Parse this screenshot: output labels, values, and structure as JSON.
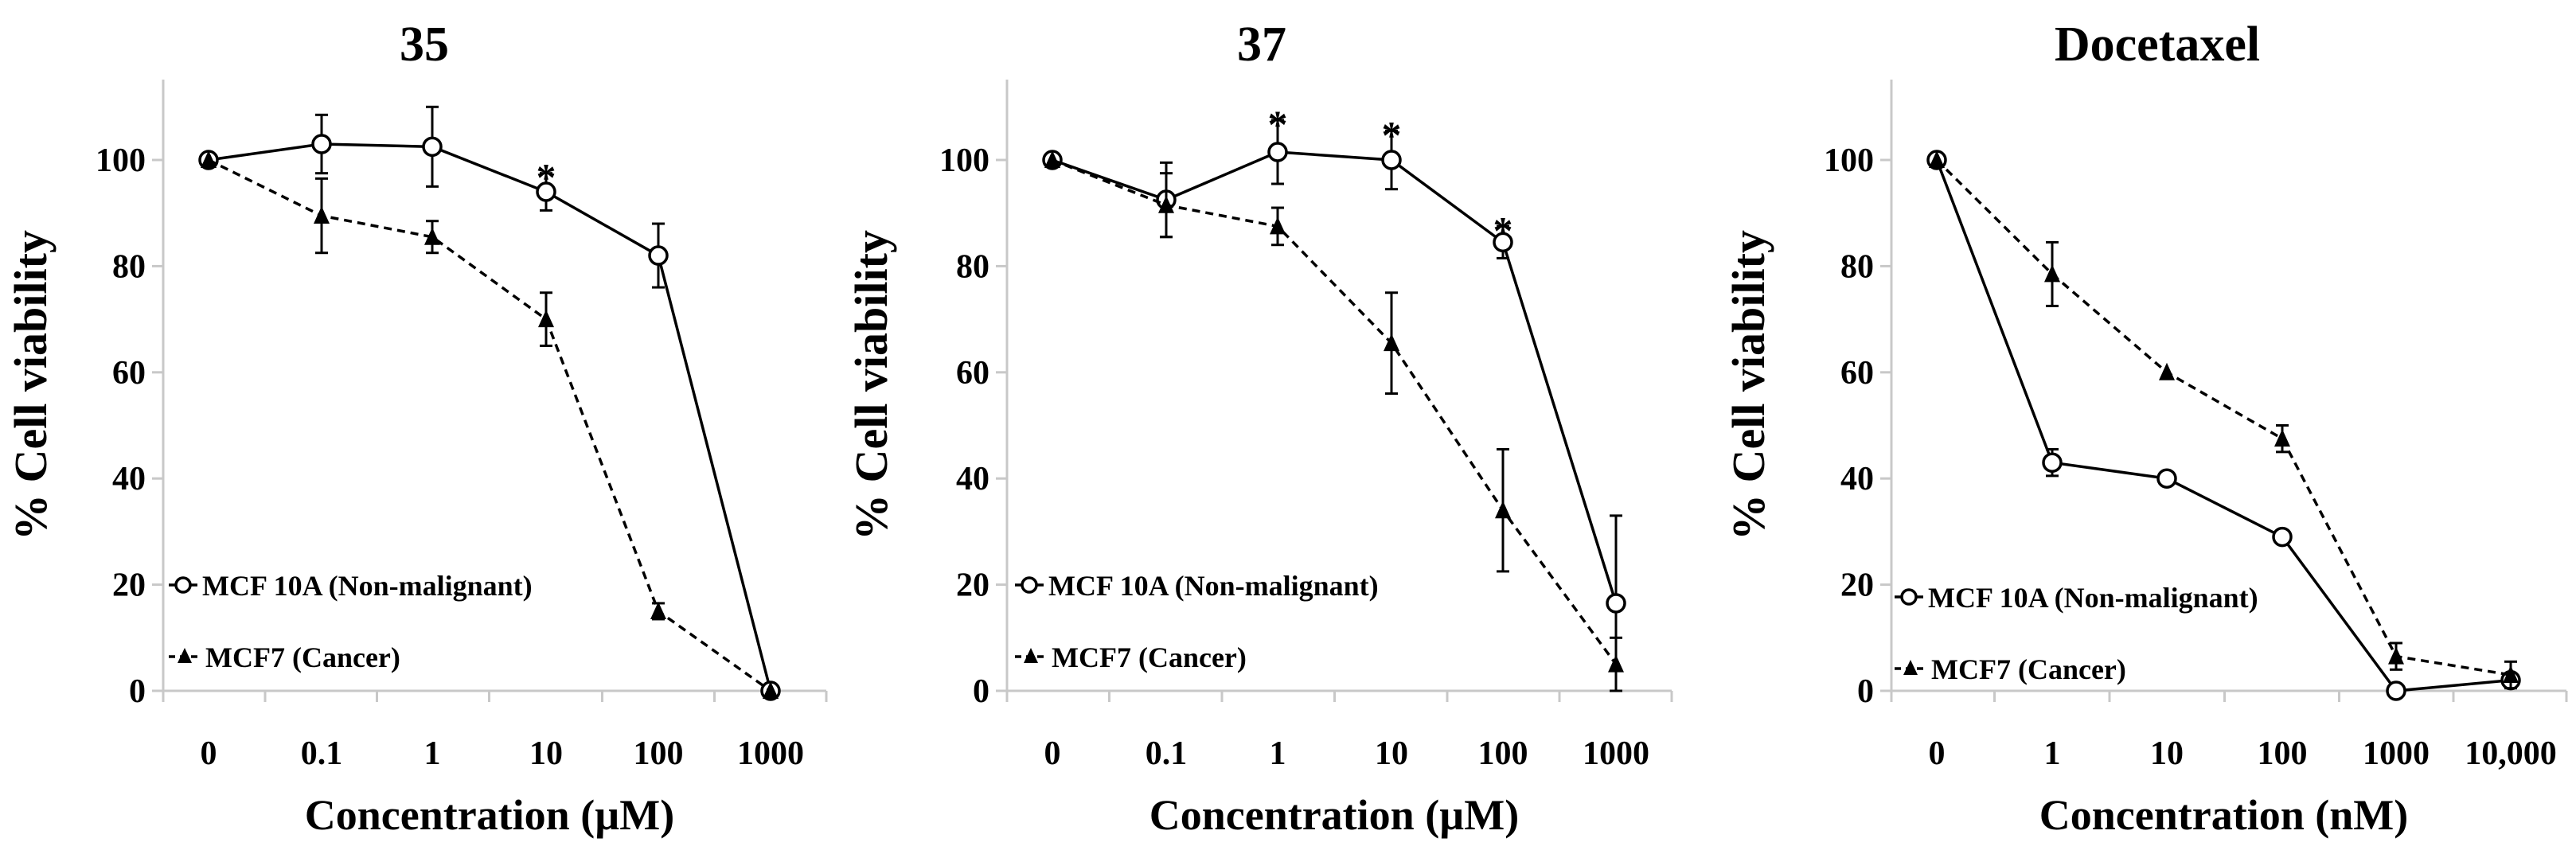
{
  "chart_data": [
    {
      "type": "line",
      "title": "35",
      "xlabel": "Concentration (µM)",
      "ylabel": "% Cell viability",
      "categories": [
        "0",
        "0.1",
        "1",
        "10",
        "100",
        "1000"
      ],
      "ylim": [
        0,
        120
      ],
      "yticks": [
        0,
        20,
        40,
        60,
        80,
        100
      ],
      "series": [
        {
          "name": "MCF 10A (Non-malignant)",
          "marker": "circle-open",
          "line": "solid",
          "values": [
            100,
            103,
            102.5,
            94,
            82,
            0
          ],
          "errors": [
            1,
            5.5,
            7.5,
            3.5,
            6,
            0
          ]
        },
        {
          "name": "MCF7 (Cancer)",
          "marker": "triangle-filled",
          "line": "dashed",
          "values": [
            100,
            89.5,
            85.5,
            70,
            15,
            0
          ],
          "errors": [
            1,
            7,
            3,
            5,
            1.5,
            0
          ]
        }
      ],
      "annotations": [
        {
          "text": "*",
          "category": "10",
          "y": 97.5
        }
      ]
    },
    {
      "type": "line",
      "title": "37",
      "xlabel": "Concentration (µM)",
      "ylabel": "% Cell viability",
      "categories": [
        "0",
        "0.1",
        "1",
        "10",
        "100",
        "1000"
      ],
      "ylim": [
        0,
        120
      ],
      "yticks": [
        0,
        20,
        40,
        60,
        80,
        100
      ],
      "series": [
        {
          "name": "MCF 10A (Non-malignant)",
          "marker": "circle-open",
          "line": "solid",
          "values": [
            100,
            92.5,
            101.5,
            100,
            84.5,
            16.5
          ],
          "errors": [
            1,
            7,
            6,
            5.5,
            3,
            16.5
          ]
        },
        {
          "name": "MCF7 (Cancer)",
          "marker": "triangle-filled",
          "line": "dashed",
          "values": [
            100,
            91.5,
            87.5,
            65.5,
            34,
            5
          ],
          "errors": [
            1,
            6,
            3.5,
            9.5,
            11.5,
            5
          ]
        }
      ],
      "annotations": [
        {
          "text": "*",
          "category": "1",
          "y": 107.5
        },
        {
          "text": "*",
          "category": "10",
          "y": 105.5
        },
        {
          "text": "*",
          "category": "100",
          "y": 87.5
        }
      ]
    },
    {
      "type": "line",
      "title": "Docetaxel",
      "xlabel": "Concentration (nM)",
      "ylabel": "% Cell viability",
      "categories": [
        "0",
        "1",
        "10",
        "100",
        "1000",
        "10,000"
      ],
      "ylim": [
        0,
        120
      ],
      "yticks": [
        0,
        20,
        40,
        60,
        80,
        100
      ],
      "series": [
        {
          "name": "MCF 10A (Non-malignant)",
          "marker": "circle-open",
          "line": "solid",
          "values": [
            100,
            43,
            40,
            29,
            0,
            2
          ],
          "errors": [
            1,
            2.5,
            1,
            1,
            0.5,
            1
          ]
        },
        {
          "name": "MCF7 (Cancer)",
          "marker": "triangle-filled",
          "line": "dashed",
          "values": [
            100,
            78.5,
            60,
            47.5,
            6.5,
            3
          ],
          "errors": [
            1,
            6,
            1,
            2.5,
            2.5,
            2.5
          ]
        }
      ],
      "annotations": []
    }
  ]
}
